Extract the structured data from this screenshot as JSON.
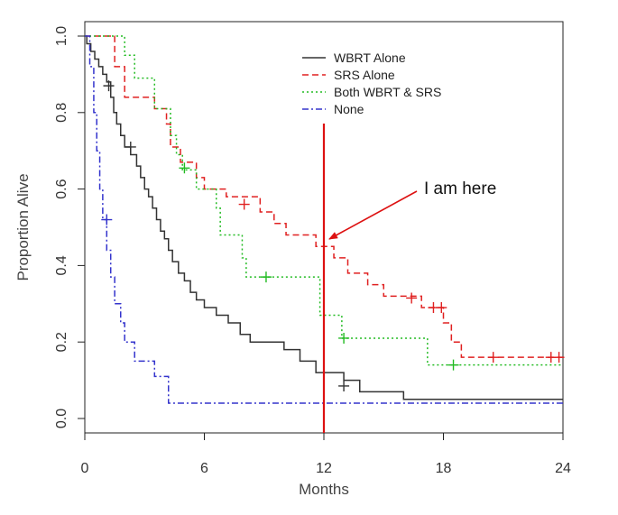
{
  "chart_data": {
    "type": "line",
    "subtype": "kaplan-meier-step",
    "title": "",
    "xlabel": "Months",
    "ylabel": "Proportion Alive",
    "xlim": [
      0,
      24
    ],
    "ylim": [
      0,
      1
    ],
    "xticks": [
      "0",
      "6",
      "12",
      "18",
      "24"
    ],
    "yticks": [
      "0.0",
      "0.2",
      "0.4",
      "0.6",
      "0.8",
      "1.0"
    ],
    "grid": false,
    "legend_position": "top-right",
    "series": [
      {
        "name": "WBRT Alone",
        "color": "#333333",
        "dash": "solid",
        "steps": [
          [
            0,
            1.0
          ],
          [
            0.1,
            0.98
          ],
          [
            0.3,
            0.96
          ],
          [
            0.5,
            0.94
          ],
          [
            0.7,
            0.92
          ],
          [
            0.9,
            0.9
          ],
          [
            1.1,
            0.88
          ],
          [
            1.3,
            0.84
          ],
          [
            1.45,
            0.8
          ],
          [
            1.6,
            0.77
          ],
          [
            1.8,
            0.74
          ],
          [
            2.0,
            0.71
          ],
          [
            2.3,
            0.69
          ],
          [
            2.6,
            0.66
          ],
          [
            2.8,
            0.63
          ],
          [
            3.0,
            0.6
          ],
          [
            3.2,
            0.58
          ],
          [
            3.4,
            0.55
          ],
          [
            3.6,
            0.52
          ],
          [
            3.8,
            0.49
          ],
          [
            4.0,
            0.47
          ],
          [
            4.2,
            0.44
          ],
          [
            4.4,
            0.41
          ],
          [
            4.7,
            0.38
          ],
          [
            5.0,
            0.36
          ],
          [
            5.3,
            0.33
          ],
          [
            5.6,
            0.31
          ],
          [
            6.0,
            0.29
          ],
          [
            6.6,
            0.27
          ],
          [
            7.2,
            0.25
          ],
          [
            7.8,
            0.22
          ],
          [
            8.3,
            0.2
          ],
          [
            10.0,
            0.18
          ],
          [
            10.8,
            0.15
          ],
          [
            11.6,
            0.12
          ],
          [
            13.0,
            0.1
          ],
          [
            13.8,
            0.07
          ],
          [
            16.0,
            0.05
          ],
          [
            24,
            0.05
          ]
        ],
        "censored": [
          [
            1.2,
            0.87
          ],
          [
            2.3,
            0.71
          ],
          [
            13.0,
            0.085
          ]
        ]
      },
      {
        "name": "SRS Alone",
        "color": "#e02020",
        "dash": "dashed",
        "steps": [
          [
            0,
            1.0
          ],
          [
            1.5,
            0.92
          ],
          [
            2.0,
            0.84
          ],
          [
            3.5,
            0.81
          ],
          [
            4.1,
            0.77
          ],
          [
            4.3,
            0.71
          ],
          [
            4.8,
            0.67
          ],
          [
            5.6,
            0.63
          ],
          [
            6.0,
            0.6
          ],
          [
            7.1,
            0.58
          ],
          [
            8.8,
            0.54
          ],
          [
            9.5,
            0.51
          ],
          [
            10.1,
            0.48
          ],
          [
            11.6,
            0.45
          ],
          [
            12.5,
            0.42
          ],
          [
            13.2,
            0.38
          ],
          [
            14.2,
            0.35
          ],
          [
            15.0,
            0.32
          ],
          [
            16.9,
            0.29
          ],
          [
            18.0,
            0.25
          ],
          [
            18.4,
            0.2
          ],
          [
            18.9,
            0.16
          ],
          [
            24,
            0.16
          ]
        ],
        "censored": [
          [
            8.0,
            0.56
          ],
          [
            16.4,
            0.315
          ],
          [
            17.5,
            0.29
          ],
          [
            17.9,
            0.29
          ],
          [
            20.5,
            0.16
          ],
          [
            23.4,
            0.16
          ],
          [
            23.8,
            0.16
          ]
        ]
      },
      {
        "name": "Both WBRT & SRS",
        "color": "#22bb22",
        "dash": "dotted",
        "steps": [
          [
            0,
            1.0
          ],
          [
            2.0,
            0.95
          ],
          [
            2.5,
            0.89
          ],
          [
            3.5,
            0.81
          ],
          [
            4.3,
            0.74
          ],
          [
            4.6,
            0.69
          ],
          [
            4.9,
            0.65
          ],
          [
            5.6,
            0.6
          ],
          [
            6.6,
            0.55
          ],
          [
            6.8,
            0.48
          ],
          [
            7.9,
            0.42
          ],
          [
            8.1,
            0.37
          ],
          [
            11.8,
            0.27
          ],
          [
            12.9,
            0.21
          ],
          [
            17.2,
            0.14
          ],
          [
            24,
            0.14
          ]
        ],
        "censored": [
          [
            5.0,
            0.655
          ],
          [
            9.1,
            0.37
          ],
          [
            13.0,
            0.21
          ],
          [
            18.5,
            0.14
          ]
        ]
      },
      {
        "name": "None",
        "color": "#3333cc",
        "dash": "dashdot",
        "steps": [
          [
            0,
            1.0
          ],
          [
            0.25,
            0.92
          ],
          [
            0.45,
            0.8
          ],
          [
            0.6,
            0.7
          ],
          [
            0.75,
            0.6
          ],
          [
            0.9,
            0.52
          ],
          [
            1.1,
            0.44
          ],
          [
            1.3,
            0.37
          ],
          [
            1.5,
            0.3
          ],
          [
            1.8,
            0.25
          ],
          [
            2.0,
            0.2
          ],
          [
            2.5,
            0.15
          ],
          [
            3.5,
            0.11
          ],
          [
            4.2,
            0.04
          ],
          [
            24,
            0.04
          ]
        ],
        "censored": [
          [
            1.1,
            0.52
          ]
        ]
      }
    ],
    "annotations": [
      {
        "text": "I am here",
        "month": 12,
        "color": "#dd1111"
      }
    ]
  }
}
